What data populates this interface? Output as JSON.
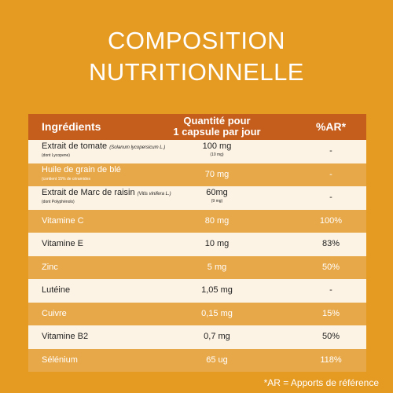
{
  "title": {
    "line1": "COMPOSITION",
    "line2": "NUTRITIONNELLE"
  },
  "table": {
    "headers": {
      "ingredients": "Ingrédients",
      "quantity_line1": "Quantité pour",
      "quantity_line2": "1 capsule par jour",
      "ar": "%AR*"
    },
    "rows": [
      {
        "name": "Extrait de tomate",
        "sci": "(Solanum lycopersicum L.)",
        "sub": "(dont Lycopene)",
        "qty": "100 mg",
        "qsub": "(10 mg)",
        "ar": "-"
      },
      {
        "name": "Huile de grain de blé",
        "sci": "",
        "sub": "(contient 15% de céramides",
        "qty": "70 mg",
        "qsub": "",
        "ar": "-"
      },
      {
        "name": "Extrait de Marc de raisin",
        "sci": "(Vitis vinifera L.)",
        "sub": "(dont Polyphénols)",
        "qty": "60mg",
        "qsub": "(9 mg)",
        "ar": "-"
      },
      {
        "name": "Vitamine C",
        "sci": "",
        "sub": "",
        "qty": "80 mg",
        "qsub": "",
        "ar": "100%"
      },
      {
        "name": "Vitamine E",
        "sci": "",
        "sub": "",
        "qty": "10 mg",
        "qsub": "",
        "ar": "83%"
      },
      {
        "name": "Zinc",
        "sci": "",
        "sub": "",
        "qty": "5 mg",
        "qsub": "",
        "ar": "50%"
      },
      {
        "name": "Lutéine",
        "sci": "",
        "sub": "",
        "qty": "1,05 mg",
        "qsub": "",
        "ar": "-"
      },
      {
        "name": "Cuivre",
        "sci": "",
        "sub": "",
        "qty": "0,15 mg",
        "qsub": "",
        "ar": "15%"
      },
      {
        "name": "Vitamine B2",
        "sci": "",
        "sub": "",
        "qty": "0,7 mg",
        "qsub": "",
        "ar": "50%"
      },
      {
        "name": "Sélénium",
        "sci": "",
        "sub": "",
        "qty": "65 ug",
        "qsub": "",
        "ar": "118%"
      }
    ]
  },
  "footnote": "*AR = Apports de référence",
  "colors": {
    "background": "#e59a22",
    "header": "#c55d1c",
    "row_light": "#fdf3e4",
    "row_dark": "#e7a84a"
  }
}
